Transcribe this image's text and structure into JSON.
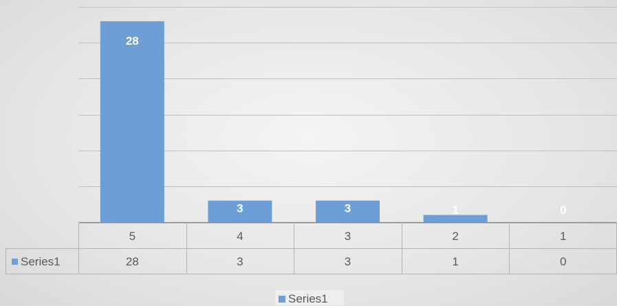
{
  "chart_data": {
    "type": "bar",
    "categories": [
      "5",
      "4",
      "3",
      "2",
      "1"
    ],
    "series": [
      {
        "name": "Series1",
        "values": [
          28,
          3,
          3,
          1,
          0
        ],
        "color": "#6d9fd6"
      }
    ],
    "title": "",
    "xlabel": "",
    "ylabel": "",
    "ylim": [
      0,
      30
    ],
    "grid": true,
    "data_table": true,
    "legend_position": "bottom"
  }
}
